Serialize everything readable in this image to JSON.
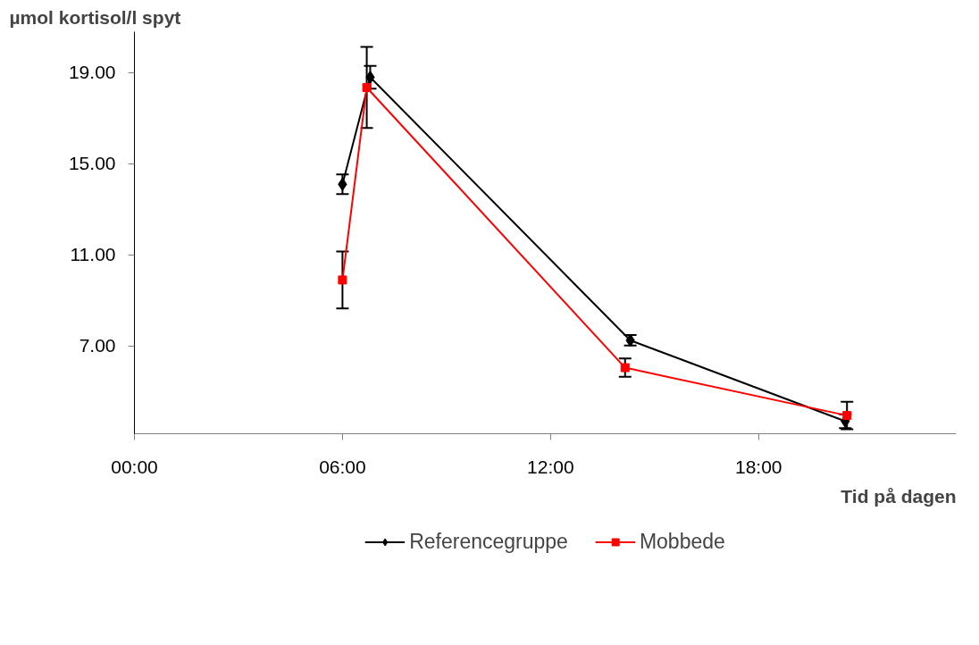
{
  "chart_data": {
    "type": "line",
    "ylabel": "µmol kortisol/l spyt",
    "xlabel": "Tid på dagen",
    "xlim": [
      0,
      23.7
    ],
    "xticks": [
      {
        "value": 0,
        "label": "00:00"
      },
      {
        "value": 6,
        "label": "06:00"
      },
      {
        "value": 12,
        "label": "12:00"
      },
      {
        "value": 18,
        "label": "18:00"
      }
    ],
    "ylim": [
      3.15,
      20.8
    ],
    "yticks": [
      {
        "value": 7,
        "label": "7.00"
      },
      {
        "value": 11,
        "label": "11.00"
      },
      {
        "value": 15,
        "label": "15.00"
      },
      {
        "value": 19,
        "label": "19.00"
      }
    ],
    "grid": false,
    "legend": "bottom",
    "series": [
      {
        "name": "Referencegruppe",
        "color": "#000000",
        "marker": "diamond",
        "x": [
          6.0,
          6.8,
          14.3,
          20.5
        ],
        "values": [
          14.1,
          18.8,
          7.25,
          3.7
        ],
        "errors": [
          0.43,
          0.5,
          0.23,
          0.3
        ]
      },
      {
        "name": "Mobbede",
        "color": "#ff0000",
        "marker": "square",
        "x": [
          6.0,
          6.7,
          14.15,
          20.55
        ],
        "values": [
          9.9,
          18.35,
          6.05,
          3.95
        ],
        "errors": [
          1.25,
          1.78,
          0.4,
          0.6
        ]
      }
    ]
  }
}
